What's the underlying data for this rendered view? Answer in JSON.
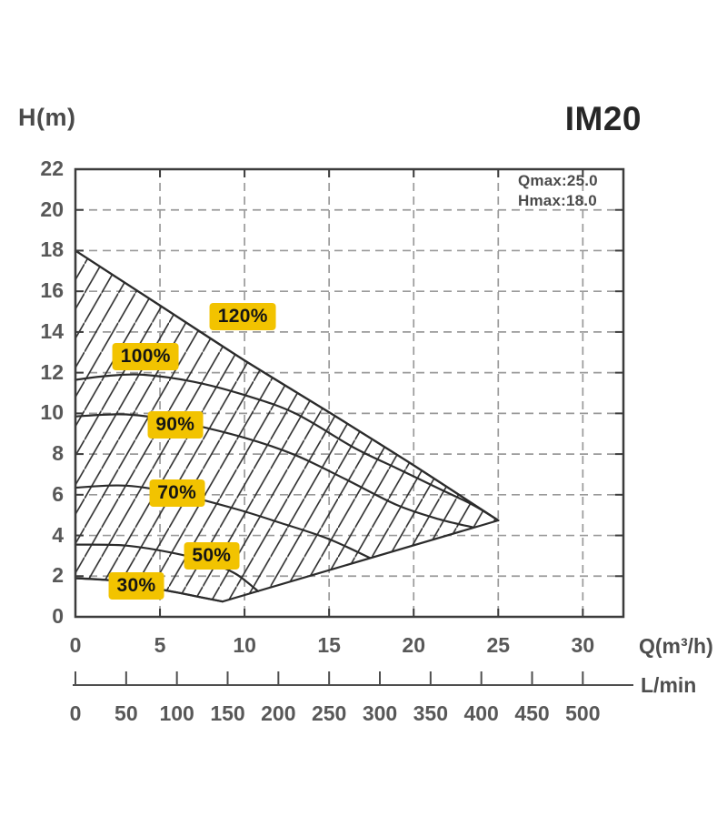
{
  "header": {
    "y_axis_title": "H(m)",
    "chart_title": "IM20"
  },
  "annotation": {
    "line1": "Qmax:25.0",
    "line2": "Hmax:18.0"
  },
  "x_axis": {
    "ticks": [
      0,
      5,
      10,
      15,
      20,
      25,
      30
    ],
    "unit_label": "Q(m³/h)"
  },
  "y_axis": {
    "ticks": [
      0,
      2,
      4,
      6,
      8,
      10,
      12,
      14,
      16,
      18,
      20,
      22
    ]
  },
  "flow_ruler": {
    "unit_label": "L/min",
    "ticks": [
      0,
      50,
      100,
      150,
      200,
      250,
      300,
      350,
      400,
      450,
      500
    ]
  },
  "chart_data": {
    "type": "line",
    "title": "IM20",
    "xlabel": "Q(m³/h)",
    "ylabel": "H(m)",
    "xlim": [
      0,
      32.4
    ],
    "ylim": [
      0,
      22
    ],
    "grid": "dashed",
    "qmax": 25.0,
    "hmax": 18.0,
    "series": [
      {
        "name": "speed-120",
        "label": "120%",
        "label_at": [
          9.9,
          14.75
        ],
        "points": [
          [
            0,
            18
          ],
          [
            5,
            15.3
          ],
          [
            10,
            12.6
          ],
          [
            15,
            10.05
          ],
          [
            20,
            7.45
          ],
          [
            25,
            4.74
          ]
        ]
      },
      {
        "name": "speed-100",
        "label": "100%",
        "label_at": [
          4.15,
          12.8
        ],
        "points": [
          [
            0,
            11.65
          ],
          [
            2,
            11.85
          ],
          [
            4,
            11.9
          ],
          [
            7,
            11.55
          ],
          [
            10,
            10.9
          ],
          [
            13,
            10.0
          ],
          [
            16.5,
            8.3
          ],
          [
            19,
            7.3
          ],
          [
            21.5,
            6.3
          ],
          [
            23.5,
            5.5
          ],
          [
            25,
            4.74
          ]
        ]
      },
      {
        "name": "speed-90",
        "label": "90%",
        "label_at": [
          5.9,
          9.45
        ],
        "points": [
          [
            0,
            9.85
          ],
          [
            3,
            9.95
          ],
          [
            6,
            9.6
          ],
          [
            10,
            8.8
          ],
          [
            13,
            7.95
          ],
          [
            16,
            6.75
          ],
          [
            19,
            5.5
          ],
          [
            21.5,
            4.8
          ],
          [
            23.5,
            4.4
          ]
        ]
      },
      {
        "name": "speed-70",
        "label": "70%",
        "label_at": [
          6.0,
          6.1
        ],
        "points": [
          [
            0,
            6.35
          ],
          [
            3,
            6.45
          ],
          [
            6,
            6.05
          ],
          [
            9.5,
            5.3
          ],
          [
            12,
            4.65
          ],
          [
            14.9,
            3.85
          ],
          [
            17.4,
            2.9
          ]
        ]
      },
      {
        "name": "speed-50",
        "label": "50%",
        "label_at": [
          8.05,
          3.0
        ],
        "points": [
          [
            0,
            3.55
          ],
          [
            3,
            3.5
          ],
          [
            6,
            3.1
          ],
          [
            8,
            2.65
          ],
          [
            9.5,
            2.1
          ],
          [
            10.8,
            1.26
          ]
        ]
      },
      {
        "name": "speed-30",
        "label": "30%",
        "label_at": [
          3.6,
          1.5
        ],
        "points": [
          [
            0,
            1.9
          ],
          [
            2,
            1.8
          ],
          [
            4,
            1.5
          ],
          [
            6,
            1.2
          ],
          [
            7.5,
            0.95
          ],
          [
            8.7,
            0.75
          ]
        ]
      }
    ],
    "envelope": {
      "max_flow_boundary": [
        [
          8.7,
          0.75
        ],
        [
          25,
          4.74
        ]
      ],
      "hatch_angle_deg": 60,
      "hatch_spacing_px": 18.6
    }
  },
  "colors": {
    "accent_yellow": "#F2C300",
    "curve": "#2c2c2c",
    "grid": "#9a9a9a",
    "border": "#3c3c3c",
    "text_grey": "#585858"
  }
}
